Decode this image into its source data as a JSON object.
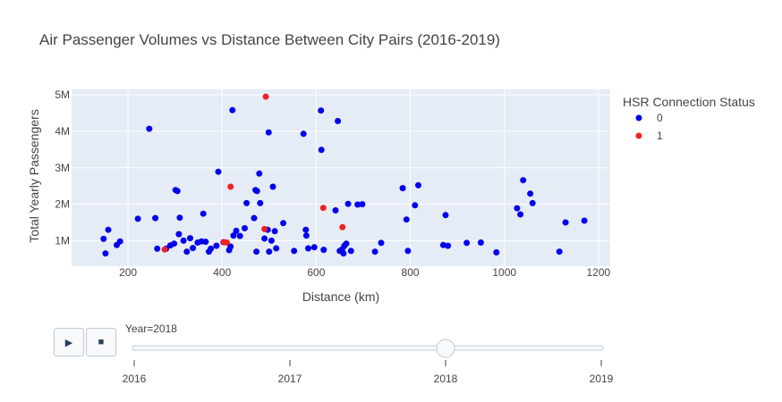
{
  "chart_data": {
    "type": "scatter",
    "title": "Air Passenger Volumes vs Distance Between City Pairs (2016-2019)",
    "xlabel": "Distance (km)",
    "ylabel": "Total Yearly Passengers",
    "xlim": [
      80,
      1225
    ],
    "ylim": [
      300000,
      5150000
    ],
    "x_ticks": [
      200,
      400,
      600,
      800,
      1000,
      1200
    ],
    "y_ticks": [
      1000000,
      2000000,
      3000000,
      4000000,
      5000000
    ],
    "y_tick_labels": [
      "1M",
      "2M",
      "3M",
      "4M",
      "5M"
    ],
    "grid": true,
    "legend": {
      "title": "HSR Connection Status",
      "placement": "right"
    },
    "series": [
      {
        "name": "0",
        "color": "#0000ee",
        "points": [
          [
            148,
            1050000
          ],
          [
            152,
            650000
          ],
          [
            158,
            1300000
          ],
          [
            176,
            880000
          ],
          [
            183,
            980000
          ],
          [
            221,
            1600000
          ],
          [
            245,
            4070000
          ],
          [
            258,
            1620000
          ],
          [
            262,
            780000
          ],
          [
            281,
            780000
          ],
          [
            290,
            870000
          ],
          [
            298,
            920000
          ],
          [
            301,
            2390000
          ],
          [
            305,
            2360000
          ],
          [
            308,
            1180000
          ],
          [
            310,
            1630000
          ],
          [
            318,
            1000000
          ],
          [
            325,
            700000
          ],
          [
            332,
            1070000
          ],
          [
            338,
            800000
          ],
          [
            348,
            950000
          ],
          [
            356,
            980000
          ],
          [
            360,
            1740000
          ],
          [
            365,
            970000
          ],
          [
            372,
            700000
          ],
          [
            376,
            780000
          ],
          [
            388,
            860000
          ],
          [
            392,
            2890000
          ],
          [
            403,
            960000
          ],
          [
            415,
            740000
          ],
          [
            418,
            840000
          ],
          [
            422,
            4580000
          ],
          [
            424,
            1140000
          ],
          [
            430,
            1270000
          ],
          [
            438,
            1130000
          ],
          [
            448,
            1340000
          ],
          [
            452,
            2030000
          ],
          [
            468,
            1620000
          ],
          [
            471,
            2390000
          ],
          [
            473,
            700000
          ],
          [
            474,
            2360000
          ],
          [
            479,
            2840000
          ],
          [
            481,
            2030000
          ],
          [
            490,
            1060000
          ],
          [
            497,
            1300000
          ],
          [
            499,
            3970000
          ],
          [
            500,
            700000
          ],
          [
            505,
            1000000
          ],
          [
            508,
            2480000
          ],
          [
            512,
            1260000
          ],
          [
            515,
            790000
          ],
          [
            530,
            1480000
          ],
          [
            553,
            720000
          ],
          [
            573,
            3930000
          ],
          [
            578,
            1300000
          ],
          [
            579,
            1140000
          ],
          [
            583,
            790000
          ],
          [
            596,
            820000
          ],
          [
            610,
            4570000
          ],
          [
            611,
            3490000
          ],
          [
            616,
            750000
          ],
          [
            641,
            1830000
          ],
          [
            646,
            4280000
          ],
          [
            650,
            720000
          ],
          [
            655,
            760000
          ],
          [
            658,
            650000
          ],
          [
            660,
            860000
          ],
          [
            664,
            920000
          ],
          [
            668,
            2010000
          ],
          [
            674,
            720000
          ],
          [
            688,
            1990000
          ],
          [
            698,
            2000000
          ],
          [
            725,
            700000
          ],
          [
            738,
            940000
          ],
          [
            784,
            2440000
          ],
          [
            792,
            1580000
          ],
          [
            795,
            720000
          ],
          [
            810,
            1970000
          ],
          [
            817,
            2520000
          ],
          [
            870,
            880000
          ],
          [
            875,
            1700000
          ],
          [
            880,
            860000
          ],
          [
            920,
            940000
          ],
          [
            950,
            950000
          ],
          [
            983,
            680000
          ],
          [
            1027,
            1890000
          ],
          [
            1034,
            1720000
          ],
          [
            1040,
            2660000
          ],
          [
            1055,
            2290000
          ],
          [
            1060,
            2030000
          ],
          [
            1117,
            700000
          ],
          [
            1130,
            1500000
          ],
          [
            1170,
            1550000
          ]
        ]
      },
      {
        "name": "1",
        "color": "#ee2222",
        "points": [
          [
            278,
            760000
          ],
          [
            404,
            960000
          ],
          [
            410,
            950000
          ],
          [
            418,
            2480000
          ],
          [
            490,
            1320000
          ],
          [
            493,
            4950000
          ],
          [
            615,
            1900000
          ],
          [
            656,
            1370000
          ]
        ]
      }
    ]
  },
  "slider": {
    "current_label": "Year=2018",
    "value": 2018,
    "range": [
      2016,
      2019
    ],
    "ticks": [
      "2016",
      "2017",
      "2018",
      "2019"
    ],
    "play_icon": "play-icon",
    "stop_icon": "stop-icon"
  }
}
